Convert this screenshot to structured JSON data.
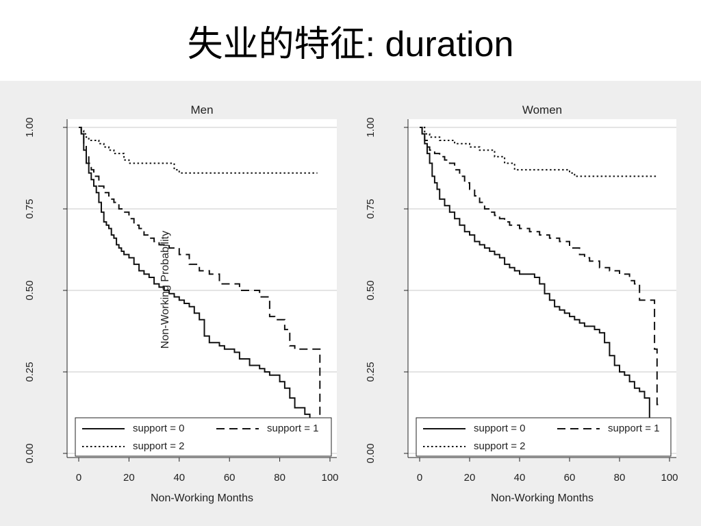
{
  "slide": {
    "title": "失业的特征: duration"
  },
  "chart_data": [
    {
      "type": "line",
      "title": "Men",
      "xlabel": "Non-Working Months",
      "ylabel": "Non-Working Probability",
      "xlim": [
        0,
        100
      ],
      "ylim": [
        0,
        1
      ],
      "xticks": [
        0,
        20,
        40,
        60,
        80,
        100
      ],
      "yticks": [
        0,
        0.25,
        0.5,
        0.75,
        1
      ],
      "ytick_labels": [
        "0.00",
        "0.25",
        "0.50",
        "0.75",
        "1.00"
      ],
      "grid": true,
      "legend_position": "bottom",
      "step": true,
      "series": [
        {
          "name": "support = 0",
          "style": "solid",
          "x": [
            0,
            1,
            2,
            3,
            4,
            5,
            6,
            7,
            8,
            9,
            10,
            11,
            12,
            13,
            14,
            15,
            16,
            17,
            18,
            20,
            22,
            24,
            26,
            28,
            30,
            32,
            34,
            36,
            38,
            40,
            42,
            44,
            46,
            48,
            50,
            52,
            56,
            58,
            62,
            64,
            68,
            72,
            74,
            76,
            80,
            82,
            84,
            86,
            90,
            92,
            94,
            96
          ],
          "y": [
            1.0,
            0.98,
            0.93,
            0.89,
            0.86,
            0.84,
            0.82,
            0.8,
            0.77,
            0.74,
            0.71,
            0.7,
            0.69,
            0.67,
            0.66,
            0.64,
            0.63,
            0.62,
            0.61,
            0.6,
            0.58,
            0.56,
            0.55,
            0.54,
            0.52,
            0.51,
            0.5,
            0.49,
            0.48,
            0.47,
            0.46,
            0.45,
            0.43,
            0.41,
            0.36,
            0.34,
            0.33,
            0.32,
            0.31,
            0.29,
            0.27,
            0.26,
            0.25,
            0.24,
            0.22,
            0.2,
            0.17,
            0.14,
            0.12,
            0.1,
            0.08,
            0.05
          ]
        },
        {
          "name": "support = 1",
          "style": "dashed",
          "x": [
            0,
            1,
            2,
            3,
            4,
            5,
            6,
            8,
            10,
            12,
            14,
            16,
            18,
            20,
            22,
            24,
            26,
            28,
            30,
            32,
            36,
            40,
            44,
            48,
            52,
            56,
            64,
            72,
            76,
            78,
            82,
            84,
            86,
            96
          ],
          "y": [
            1.0,
            0.98,
            0.95,
            0.92,
            0.89,
            0.87,
            0.85,
            0.82,
            0.8,
            0.78,
            0.77,
            0.75,
            0.74,
            0.72,
            0.7,
            0.69,
            0.67,
            0.66,
            0.65,
            0.64,
            0.63,
            0.61,
            0.58,
            0.56,
            0.55,
            0.52,
            0.5,
            0.48,
            0.42,
            0.41,
            0.38,
            0.33,
            0.32,
            0.1
          ]
        },
        {
          "name": "support = 2",
          "style": "dotted",
          "x": [
            0,
            1,
            2,
            3,
            4,
            6,
            8,
            10,
            12,
            14,
            18,
            20,
            30,
            38,
            40,
            95
          ],
          "y": [
            1.0,
            0.99,
            0.98,
            0.97,
            0.96,
            0.96,
            0.95,
            0.94,
            0.93,
            0.92,
            0.9,
            0.89,
            0.89,
            0.87,
            0.86,
            0.86
          ]
        }
      ]
    },
    {
      "type": "line",
      "title": "Women",
      "xlabel": "Non-Working Months",
      "ylabel": "",
      "xlim": [
        0,
        100
      ],
      "ylim": [
        0,
        1
      ],
      "xticks": [
        0,
        20,
        40,
        60,
        80,
        100
      ],
      "yticks": [
        0,
        0.25,
        0.5,
        0.75,
        1
      ],
      "ytick_labels": [
        "0.00",
        "0.25",
        "0.50",
        "0.75",
        "1.00"
      ],
      "grid": true,
      "legend_position": "bottom",
      "step": true,
      "series": [
        {
          "name": "support = 0",
          "style": "solid",
          "x": [
            0,
            1,
            2,
            3,
            4,
            5,
            6,
            7,
            8,
            10,
            12,
            14,
            16,
            18,
            20,
            22,
            24,
            26,
            28,
            30,
            32,
            34,
            36,
            38,
            40,
            46,
            48,
            50,
            52,
            54,
            56,
            58,
            60,
            62,
            64,
            66,
            70,
            72,
            74,
            76,
            78,
            80,
            82,
            84,
            86,
            88,
            90,
            92
          ],
          "y": [
            1.0,
            0.98,
            0.95,
            0.92,
            0.89,
            0.85,
            0.83,
            0.81,
            0.78,
            0.76,
            0.74,
            0.72,
            0.7,
            0.68,
            0.67,
            0.65,
            0.64,
            0.63,
            0.62,
            0.61,
            0.6,
            0.58,
            0.57,
            0.56,
            0.55,
            0.54,
            0.52,
            0.49,
            0.47,
            0.45,
            0.44,
            0.43,
            0.42,
            0.41,
            0.4,
            0.39,
            0.38,
            0.37,
            0.34,
            0.3,
            0.27,
            0.25,
            0.24,
            0.22,
            0.2,
            0.19,
            0.17,
            0.1
          ]
        },
        {
          "name": "support = 1",
          "style": "dashed",
          "x": [
            0,
            1,
            2,
            3,
            4,
            6,
            8,
            10,
            12,
            14,
            16,
            18,
            20,
            22,
            24,
            26,
            28,
            30,
            32,
            34,
            36,
            40,
            44,
            48,
            52,
            56,
            60,
            64,
            66,
            68,
            72,
            76,
            80,
            84,
            86,
            88,
            94,
            95,
            96
          ],
          "y": [
            1.0,
            0.98,
            0.96,
            0.94,
            0.93,
            0.92,
            0.91,
            0.9,
            0.89,
            0.87,
            0.85,
            0.83,
            0.81,
            0.79,
            0.77,
            0.75,
            0.74,
            0.73,
            0.72,
            0.71,
            0.7,
            0.69,
            0.68,
            0.67,
            0.66,
            0.65,
            0.63,
            0.61,
            0.6,
            0.59,
            0.57,
            0.56,
            0.55,
            0.53,
            0.52,
            0.47,
            0.32,
            0.15,
            0.15
          ]
        },
        {
          "name": "support = 2",
          "style": "dotted",
          "x": [
            0,
            2,
            4,
            8,
            14,
            20,
            24,
            30,
            34,
            38,
            48,
            60,
            62,
            95
          ],
          "y": [
            1.0,
            0.98,
            0.97,
            0.96,
            0.95,
            0.94,
            0.93,
            0.91,
            0.89,
            0.87,
            0.87,
            0.86,
            0.85,
            0.85
          ]
        }
      ]
    }
  ]
}
